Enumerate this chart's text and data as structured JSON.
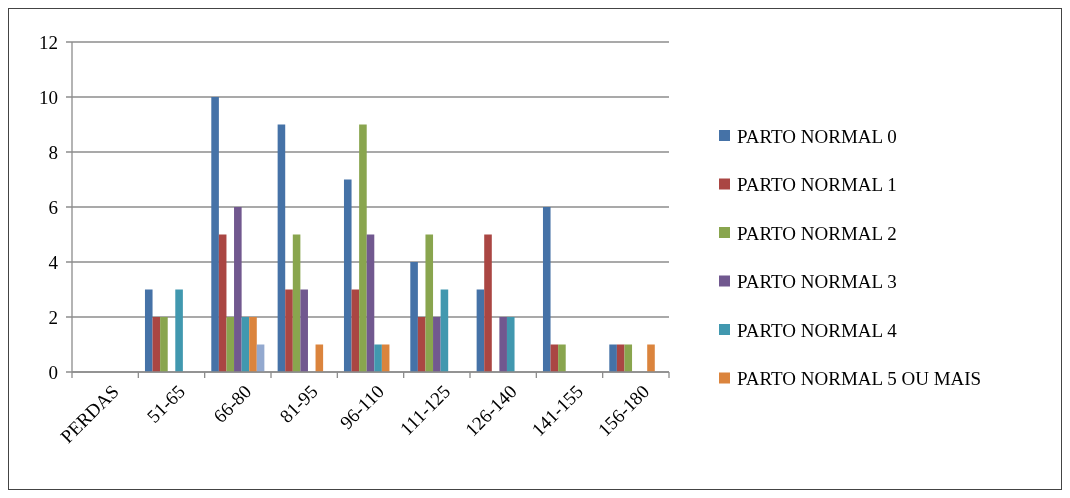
{
  "chart_data": {
    "type": "bar",
    "categories": [
      "PERDAS",
      "51-65",
      "66-80",
      "81-95",
      "96-110",
      "111-125",
      "126-140",
      "141-155",
      "156-180"
    ],
    "series": [
      {
        "name": "PARTO NORMAL 0",
        "color": "#4572a7",
        "values": [
          null,
          3,
          10,
          9,
          7,
          4,
          3,
          6,
          1
        ]
      },
      {
        "name": "PARTO NORMAL 1",
        "color": "#aa4643",
        "values": [
          null,
          2,
          5,
          3,
          3,
          2,
          5,
          1,
          1
        ]
      },
      {
        "name": "PARTO NORMAL 2",
        "color": "#89a54e",
        "values": [
          null,
          2,
          2,
          5,
          9,
          5,
          null,
          1,
          1
        ]
      },
      {
        "name": "PARTO NORMAL 3",
        "color": "#71588f",
        "values": [
          null,
          null,
          6,
          3,
          5,
          2,
          2,
          null,
          null
        ]
      },
      {
        "name": "PARTO NORMAL 4",
        "color": "#4198af",
        "values": [
          null,
          3,
          2,
          null,
          1,
          3,
          2,
          null,
          null
        ]
      },
      {
        "name": "PARTO NORMAL 5 OU MAIS",
        "color": "#db843d",
        "values": [
          null,
          null,
          2,
          1,
          1,
          null,
          null,
          null,
          1
        ]
      },
      {
        "color": "#93a9cf",
        "values": [
          null,
          null,
          1,
          null,
          null,
          null,
          null,
          null,
          null
        ]
      }
    ],
    "ylim": [
      0,
      12
    ],
    "yticks": [
      0,
      2,
      4,
      6,
      8,
      10,
      12
    ],
    "grid": "y",
    "legend": "right"
  }
}
